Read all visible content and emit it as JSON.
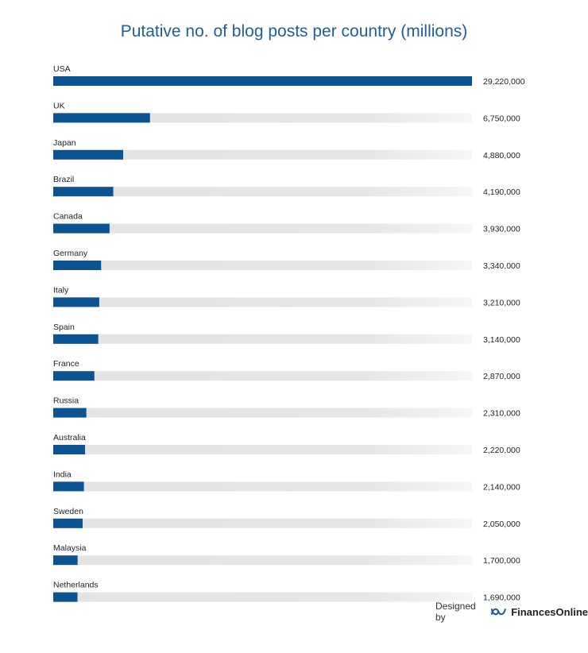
{
  "chart_data": {
    "type": "bar",
    "orientation": "horizontal",
    "title": "Putative no. of blog posts per country (millions)",
    "categories": [
      "USA",
      "UK",
      "Japan",
      "Brazil",
      "Canada",
      "Germany",
      "Italy",
      "Spain",
      "France",
      "Russia",
      "Australia",
      "India",
      "Sweden",
      "Malaysia",
      "Netherlands"
    ],
    "values": [
      29220000,
      6750000,
      4880000,
      4190000,
      3930000,
      3340000,
      3210000,
      3140000,
      2870000,
      2310000,
      2220000,
      2140000,
      2050000,
      1700000,
      1690000
    ],
    "value_labels": [
      "29,220,000",
      "6,750,000",
      "4,880,000",
      "4,190,000",
      "3,930,000",
      "3,340,000",
      "3,210,000",
      "3,140,000",
      "2,870,000",
      "2,310,000",
      "2,220,000",
      "2,140,000",
      "2,050,000",
      "1,700,000",
      "1,690,000"
    ],
    "xlim": [
      0,
      29220000
    ],
    "grid": false,
    "legend": "none",
    "colors": {
      "bar": "#0b5391",
      "track": "#e6e6e6",
      "title": "#1f5e96",
      "label": "#222222"
    }
  },
  "footer": {
    "designed_by": "Designed by",
    "brand": "FinancesOnline",
    "logo_icon": "financesonline-logo-icon"
  }
}
